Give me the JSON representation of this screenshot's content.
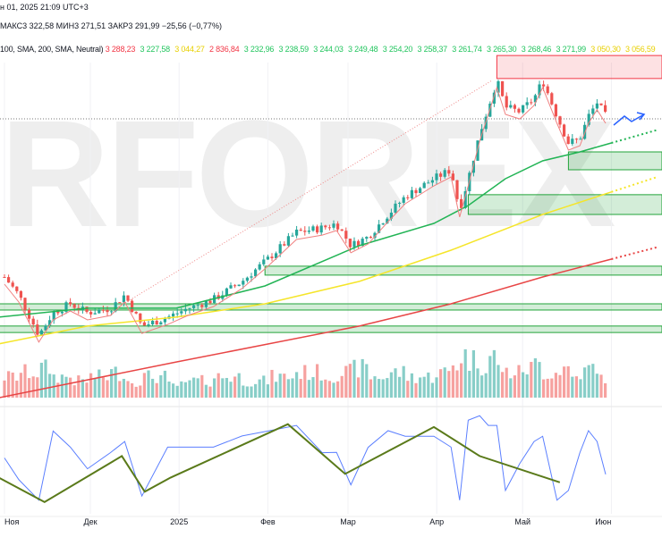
{
  "header": {
    "datetime": "н 01, 2025 21:09 UTC+3",
    "ohlc": "МАКС3 322,58  МИН3 271,51  ЗАКР3 291,99  −25,56 (−0,77%)",
    "indicator": "100, SMA, 200, SMA, Neutral)",
    "indicator_values": [
      {
        "text": "3 288,23",
        "color": "#f23645"
      },
      {
        "text": "3 227,58",
        "color": "#22c55e"
      },
      {
        "text": "3 044,27",
        "color": "#e8d000"
      },
      {
        "text": "2 836,84",
        "color": "#f23645"
      },
      {
        "text": "3 232,96",
        "color": "#22c55e"
      },
      {
        "text": "3 238,59",
        "color": "#22c55e"
      },
      {
        "text": "3 244,03",
        "color": "#22c55e"
      },
      {
        "text": "3 249,48",
        "color": "#22c55e"
      },
      {
        "text": "3 254,20",
        "color": "#22c55e"
      },
      {
        "text": "3 258,37",
        "color": "#22c55e"
      },
      {
        "text": "3 261,74",
        "color": "#22c55e"
      },
      {
        "text": "3 265,30",
        "color": "#22c55e"
      },
      {
        "text": "3 268,46",
        "color": "#22c55e"
      },
      {
        "text": "3 271,99",
        "color": "#22c55e"
      },
      {
        "text": "3 050,30",
        "color": "#e8d000"
      },
      {
        "text": "3 056,59",
        "color": "#e8d000"
      }
    ]
  },
  "watermark": "RFOREX",
  "chart_data": {
    "type": "candlestick",
    "x_tick_labels": [
      {
        "label": "Ноя",
        "date": "2024-11-01"
      },
      {
        "label": "Дек",
        "date": "2024-12-01"
      },
      {
        "label": "2025",
        "date": "2025-01-01"
      },
      {
        "label": "Фев",
        "date": "2025-02-01"
      },
      {
        "label": "Мар",
        "date": "2025-03-01"
      },
      {
        "label": "Апр",
        "date": "2025-04-01"
      },
      {
        "label": "Май",
        "date": "2025-05-01"
      },
      {
        "label": "Июн",
        "date": "2025-06-01"
      }
    ],
    "close": [
      [
        "2024-11-01",
        2698
      ],
      [
        "2024-11-06",
        2632
      ],
      [
        "2024-11-13",
        2484
      ],
      [
        "2024-11-18",
        2566
      ],
      [
        "2024-11-24",
        2599
      ],
      [
        "2024-11-30",
        2566
      ],
      [
        "2024-12-08",
        2582
      ],
      [
        "2024-12-13",
        2632
      ],
      [
        "2024-12-19",
        2516
      ],
      [
        "2024-12-28",
        2549
      ],
      [
        "2025-01-04",
        2582
      ],
      [
        "2025-01-13",
        2615
      ],
      [
        "2025-01-23",
        2682
      ],
      [
        "2025-02-01",
        2764
      ],
      [
        "2025-02-11",
        2863
      ],
      [
        "2025-02-20",
        2879
      ],
      [
        "2025-02-25",
        2896
      ],
      [
        "2025-03-02",
        2814
      ],
      [
        "2025-03-08",
        2846
      ],
      [
        "2025-03-15",
        2929
      ],
      [
        "2025-03-21",
        2995
      ],
      [
        "2025-03-31",
        3061
      ],
      [
        "2025-04-06",
        3094
      ],
      [
        "2025-04-09",
        2946
      ],
      [
        "2025-04-12",
        3061
      ],
      [
        "2025-04-16",
        3226
      ],
      [
        "2025-04-19",
        3325
      ],
      [
        "2025-04-22",
        3424
      ],
      [
        "2025-04-25",
        3325
      ],
      [
        "2025-04-30",
        3308
      ],
      [
        "2025-05-05",
        3358
      ],
      [
        "2025-05-08",
        3424
      ],
      [
        "2025-05-13",
        3292
      ],
      [
        "2025-05-17",
        3193
      ],
      [
        "2025-05-21",
        3209
      ],
      [
        "2025-05-24",
        3292
      ],
      [
        "2025-05-27",
        3342
      ],
      [
        "2025-05-30",
        3292
      ]
    ],
    "volume_relative": [
      0.5,
      0.6,
      0.7,
      0.5,
      0.4,
      0.5,
      0.6,
      0.4,
      0.5,
      0.3,
      0.4,
      0.5,
      0.4,
      0.5,
      0.6,
      0.5,
      0.6,
      0.7,
      0.5,
      0.6,
      0.5,
      0.6,
      0.8,
      1.0,
      0.9,
      0.8,
      1.0,
      0.7,
      0.6,
      0.7,
      0.8,
      0.6,
      0.7,
      0.5,
      0.6,
      0.7,
      0.5,
      0.6
    ],
    "moving_averages": [
      {
        "color": "#22b455",
        "points": [
          [
            "2024-10-30",
            2550
          ],
          [
            "2024-11-30",
            2583
          ],
          [
            "2024-12-31",
            2583
          ],
          [
            "2025-01-31",
            2665
          ],
          [
            "2025-03-05",
            2814
          ],
          [
            "2025-03-31",
            2896
          ],
          [
            "2025-04-12",
            2962
          ],
          [
            "2025-04-25",
            3061
          ],
          [
            "2025-05-08",
            3127
          ],
          [
            "2025-05-21",
            3160
          ],
          [
            "2025-06-01",
            3193
          ]
        ]
      },
      {
        "color": "#f5e52a",
        "points": [
          [
            "2024-10-30",
            2451
          ],
          [
            "2024-11-30",
            2517
          ],
          [
            "2024-12-31",
            2550
          ],
          [
            "2025-01-31",
            2599
          ],
          [
            "2025-03-05",
            2682
          ],
          [
            "2025-04-06",
            2797
          ],
          [
            "2025-05-08",
            2929
          ],
          [
            "2025-06-01",
            3012
          ]
        ]
      },
      {
        "color": "#e84545",
        "points": [
          [
            "2024-10-30",
            2252
          ],
          [
            "2024-12-31",
            2384
          ],
          [
            "2025-03-05",
            2517
          ],
          [
            "2025-04-06",
            2599
          ],
          [
            "2025-05-08",
            2698
          ],
          [
            "2025-06-01",
            2764
          ]
        ]
      }
    ],
    "zones": [
      {
        "kind": "resistance",
        "color": "#f23645",
        "from": "2025-04-22",
        "top": 3516,
        "bottom": 3431
      },
      {
        "kind": "support",
        "color": "#22a33a",
        "from": "2025-05-17",
        "top": 3160,
        "bottom": 3094
      },
      {
        "kind": "support",
        "color": "#22a33a",
        "from": "2025-04-12",
        "top": 3002,
        "bottom": 2929
      },
      {
        "kind": "support",
        "color": "#22a33a",
        "from": "2025-01-31",
        "top": 2738,
        "bottom": 2705
      },
      {
        "kind": "support",
        "color": "#22a33a",
        "from": "2024-10-30",
        "top": 2599,
        "bottom": 2576
      },
      {
        "kind": "support",
        "color": "#22a33a",
        "from": "2024-10-30",
        "top": 2517,
        "bottom": 2493
      }
    ],
    "oscillator_zigzag": [
      [
        "2024-10-30",
        29
      ],
      [
        "2024-11-15",
        3
      ],
      [
        "2024-12-12",
        52
      ],
      [
        "2024-12-20",
        14
      ],
      [
        "2024-12-29",
        29
      ],
      [
        "2025-02-08",
        86
      ],
      [
        "2025-02-28",
        33
      ],
      [
        "2025-03-31",
        83
      ],
      [
        "2025-04-16",
        52
      ],
      [
        "2025-05-14",
        24
      ]
    ],
    "colors": {
      "up": "#26a69a",
      "down": "#ef5350"
    }
  }
}
